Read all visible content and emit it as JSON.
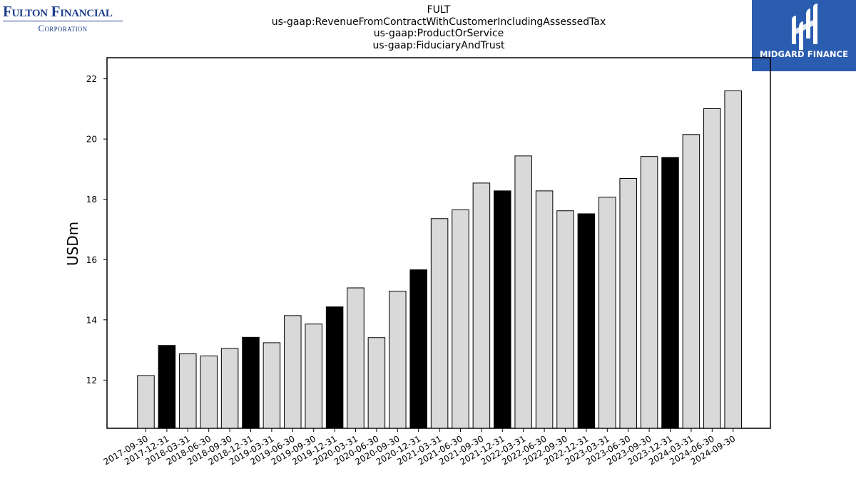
{
  "header": {
    "left_logo": {
      "line1": "Fulton Financial",
      "line2": "Corporation"
    },
    "right_logo": {
      "name": "MIDGARD FINANCE",
      "background": "#2a5cb0"
    }
  },
  "chart_data": {
    "type": "bar",
    "title_lines": [
      "FULT",
      "us-gaap:RevenueFromContractWithCustomerIncludingAssessedTax",
      "us-gaap:ProductOrService",
      "us-gaap:FiduciaryAndTrust"
    ],
    "xlabel": "",
    "ylabel": "USDm",
    "ylim": [
      10.4,
      22.7
    ],
    "yticks": [
      12,
      14,
      16,
      18,
      20,
      22
    ],
    "grid": false,
    "colors": {
      "q4": "#000000",
      "other": "#d9d9d9",
      "edge": "#000000"
    },
    "categories": [
      "2017-09-30",
      "2017-12-31",
      "2018-03-31",
      "2018-06-30",
      "2018-09-30",
      "2018-12-31",
      "2019-03-31",
      "2019-06-30",
      "2019-09-30",
      "2019-12-31",
      "2020-03-31",
      "2020-06-30",
      "2020-09-30",
      "2020-12-31",
      "2021-03-31",
      "2021-06-30",
      "2021-09-30",
      "2021-12-31",
      "2022-03-31",
      "2022-06-30",
      "2022-09-30",
      "2022-12-31",
      "2023-03-31",
      "2023-06-30",
      "2023-09-30",
      "2023-12-31",
      "2024-03-31",
      "2024-06-30",
      "2024-09-30"
    ],
    "values": [
      12.15,
      13.15,
      12.87,
      12.8,
      13.05,
      13.42,
      13.24,
      14.14,
      13.86,
      14.43,
      15.06,
      13.41,
      14.95,
      15.66,
      17.36,
      17.65,
      18.54,
      18.28,
      19.44,
      18.28,
      17.62,
      17.52,
      18.07,
      18.69,
      19.42,
      19.39,
      20.15,
      21.01,
      21.6
    ]
  }
}
